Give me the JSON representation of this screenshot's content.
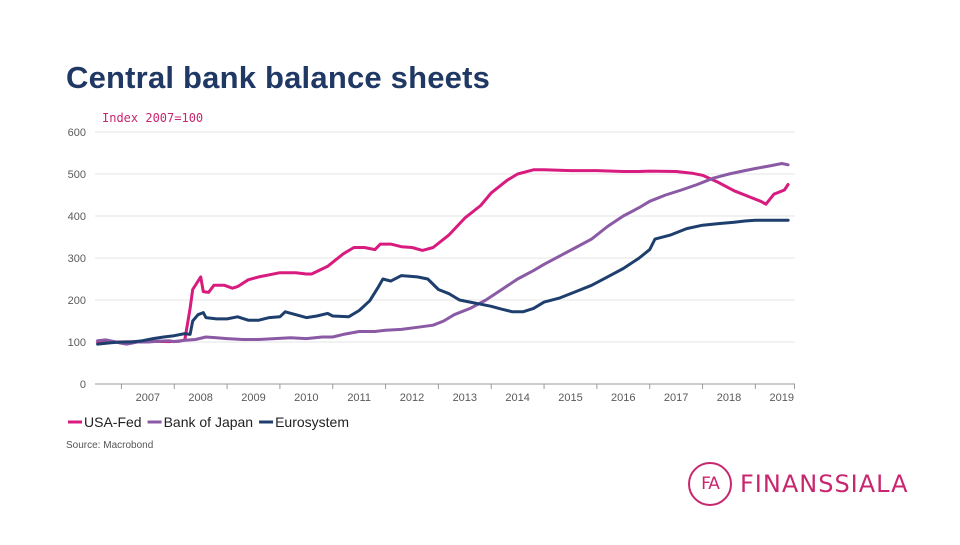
{
  "slide": {
    "title": "Central bank balance sheets",
    "source": "Source: Macrobond"
  },
  "logo": {
    "mark": "FA",
    "word": "FINANSSIALA",
    "color": "#c8266e"
  },
  "chart_data": {
    "type": "line",
    "ylabel": "Index 2007=100",
    "ylim": [
      0,
      600
    ],
    "yticks": [
      0,
      100,
      200,
      300,
      400,
      500,
      600
    ],
    "xlim": [
      2006.5,
      2019.75
    ],
    "xticks": [
      "2007",
      "2008",
      "2009",
      "2010",
      "2011",
      "2012",
      "2013",
      "2014",
      "2015",
      "2016",
      "2017",
      "2018",
      "2019"
    ],
    "grid": true,
    "legend_position": "bottom-left",
    "series": [
      {
        "name": "USA-Fed",
        "color": "#d81b7f",
        "points": [
          [
            2006.55,
            100
          ],
          [
            2007.0,
            100
          ],
          [
            2007.5,
            102
          ],
          [
            2007.9,
            101
          ],
          [
            2008.1,
            102
          ],
          [
            2008.2,
            105
          ],
          [
            2008.3,
            180
          ],
          [
            2008.35,
            225
          ],
          [
            2008.5,
            255
          ],
          [
            2008.55,
            220
          ],
          [
            2008.65,
            218
          ],
          [
            2008.75,
            235
          ],
          [
            2008.95,
            235
          ],
          [
            2009.1,
            228
          ],
          [
            2009.2,
            232
          ],
          [
            2009.4,
            248
          ],
          [
            2009.6,
            255
          ],
          [
            2009.8,
            260
          ],
          [
            2010.0,
            265
          ],
          [
            2010.3,
            265
          ],
          [
            2010.5,
            262
          ],
          [
            2010.6,
            262
          ],
          [
            2010.9,
            280
          ],
          [
            2011.2,
            310
          ],
          [
            2011.4,
            325
          ],
          [
            2011.6,
            325
          ],
          [
            2011.8,
            320
          ],
          [
            2011.9,
            333
          ],
          [
            2012.1,
            333
          ],
          [
            2012.3,
            327
          ],
          [
            2012.5,
            325
          ],
          [
            2012.7,
            318
          ],
          [
            2012.9,
            325
          ],
          [
            2013.2,
            355
          ],
          [
            2013.5,
            395
          ],
          [
            2013.8,
            425
          ],
          [
            2014.0,
            455
          ],
          [
            2014.3,
            485
          ],
          [
            2014.5,
            500
          ],
          [
            2014.8,
            510
          ],
          [
            2015.0,
            510
          ],
          [
            2015.5,
            508
          ],
          [
            2016.0,
            508
          ],
          [
            2016.5,
            506
          ],
          [
            2016.8,
            506
          ],
          [
            2017.0,
            507
          ],
          [
            2017.5,
            506
          ],
          [
            2017.8,
            502
          ],
          [
            2018.0,
            497
          ],
          [
            2018.3,
            480
          ],
          [
            2018.6,
            460
          ],
          [
            2018.9,
            445
          ],
          [
            2019.1,
            435
          ],
          [
            2019.2,
            428
          ],
          [
            2019.35,
            452
          ],
          [
            2019.55,
            462
          ],
          [
            2019.62,
            475
          ]
        ]
      },
      {
        "name": "Bank of Japan",
        "color": "#8a5aa5",
        "points": [
          [
            2006.55,
            103
          ],
          [
            2006.7,
            105
          ],
          [
            2006.9,
            100
          ],
          [
            2007.0,
            97
          ],
          [
            2007.1,
            95
          ],
          [
            2007.3,
            100
          ],
          [
            2007.5,
            100
          ],
          [
            2007.7,
            102
          ],
          [
            2007.9,
            103
          ],
          [
            2008.0,
            101
          ],
          [
            2008.2,
            104
          ],
          [
            2008.4,
            106
          ],
          [
            2008.6,
            112
          ],
          [
            2008.8,
            110
          ],
          [
            2009.0,
            108
          ],
          [
            2009.3,
            106
          ],
          [
            2009.6,
            106
          ],
          [
            2009.9,
            108
          ],
          [
            2010.2,
            110
          ],
          [
            2010.5,
            108
          ],
          [
            2010.8,
            112
          ],
          [
            2011.0,
            112
          ],
          [
            2011.2,
            118
          ],
          [
            2011.5,
            125
          ],
          [
            2011.8,
            125
          ],
          [
            2012.0,
            128
          ],
          [
            2012.3,
            130
          ],
          [
            2012.6,
            135
          ],
          [
            2012.9,
            140
          ],
          [
            2013.1,
            150
          ],
          [
            2013.3,
            165
          ],
          [
            2013.6,
            180
          ],
          [
            2013.9,
            200
          ],
          [
            2014.2,
            225
          ],
          [
            2014.5,
            250
          ],
          [
            2014.8,
            270
          ],
          [
            2015.0,
            285
          ],
          [
            2015.3,
            305
          ],
          [
            2015.6,
            325
          ],
          [
            2015.9,
            345
          ],
          [
            2016.2,
            375
          ],
          [
            2016.5,
            400
          ],
          [
            2016.8,
            420
          ],
          [
            2017.0,
            435
          ],
          [
            2017.3,
            450
          ],
          [
            2017.6,
            462
          ],
          [
            2017.9,
            475
          ],
          [
            2018.2,
            490
          ],
          [
            2018.5,
            500
          ],
          [
            2018.8,
            508
          ],
          [
            2019.0,
            513
          ],
          [
            2019.3,
            520
          ],
          [
            2019.5,
            525
          ],
          [
            2019.62,
            522
          ]
        ]
      },
      {
        "name": "Eurosystem",
        "color": "#1e3f6e",
        "points": [
          [
            2006.55,
            95
          ],
          [
            2006.8,
            98
          ],
          [
            2007.0,
            100
          ],
          [
            2007.2,
            100
          ],
          [
            2007.4,
            103
          ],
          [
            2007.6,
            108
          ],
          [
            2007.8,
            112
          ],
          [
            2008.0,
            115
          ],
          [
            2008.2,
            120
          ],
          [
            2008.3,
            118
          ],
          [
            2008.35,
            150
          ],
          [
            2008.45,
            165
          ],
          [
            2008.55,
            170
          ],
          [
            2008.6,
            158
          ],
          [
            2008.8,
            155
          ],
          [
            2009.0,
            155
          ],
          [
            2009.2,
            160
          ],
          [
            2009.4,
            152
          ],
          [
            2009.6,
            152
          ],
          [
            2009.8,
            158
          ],
          [
            2010.0,
            160
          ],
          [
            2010.1,
            172
          ],
          [
            2010.3,
            165
          ],
          [
            2010.5,
            158
          ],
          [
            2010.7,
            162
          ],
          [
            2010.9,
            168
          ],
          [
            2011.0,
            162
          ],
          [
            2011.3,
            160
          ],
          [
            2011.5,
            175
          ],
          [
            2011.7,
            198
          ],
          [
            2011.85,
            228
          ],
          [
            2011.95,
            250
          ],
          [
            2012.1,
            245
          ],
          [
            2012.3,
            258
          ],
          [
            2012.6,
            255
          ],
          [
            2012.8,
            250
          ],
          [
            2013.0,
            225
          ],
          [
            2013.2,
            215
          ],
          [
            2013.4,
            200
          ],
          [
            2013.6,
            195
          ],
          [
            2013.8,
            190
          ],
          [
            2014.0,
            185
          ],
          [
            2014.2,
            178
          ],
          [
            2014.4,
            172
          ],
          [
            2014.6,
            172
          ],
          [
            2014.8,
            180
          ],
          [
            2015.0,
            195
          ],
          [
            2015.3,
            205
          ],
          [
            2015.6,
            220
          ],
          [
            2015.9,
            235
          ],
          [
            2016.2,
            255
          ],
          [
            2016.5,
            275
          ],
          [
            2016.8,
            300
          ],
          [
            2017.0,
            320
          ],
          [
            2017.1,
            345
          ],
          [
            2017.4,
            355
          ],
          [
            2017.7,
            370
          ],
          [
            2018.0,
            378
          ],
          [
            2018.3,
            382
          ],
          [
            2018.6,
            385
          ],
          [
            2018.8,
            388
          ],
          [
            2019.0,
            390
          ],
          [
            2019.3,
            390
          ],
          [
            2019.62,
            390
          ]
        ]
      }
    ]
  }
}
